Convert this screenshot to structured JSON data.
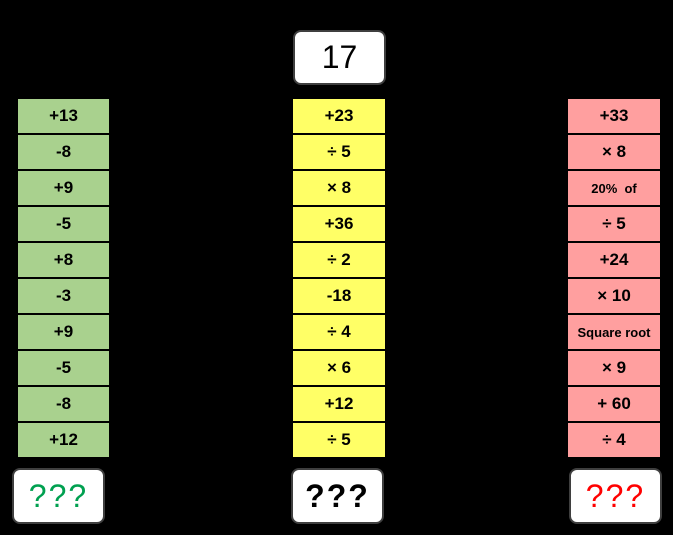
{
  "start_number": "17",
  "columns": {
    "green": [
      "+13",
      "-8",
      "+9",
      "-5",
      "+8",
      "-3",
      "+9",
      "-5",
      "-8",
      "+12"
    ],
    "yellow": [
      "+23",
      "÷ 5",
      "× 8",
      "+36",
      "÷ 2",
      "-18",
      "÷ 4",
      "× 6",
      "+12",
      "÷ 5"
    ],
    "red": [
      "+33",
      "× 8",
      "20%  of",
      "÷ 5",
      "+24",
      "× 10",
      "Square root",
      "× 9",
      "+ 60",
      "÷ 4"
    ]
  },
  "answers": {
    "green": "???",
    "yellow": "???",
    "red": "???"
  },
  "colors": {
    "green_fill": "#a9d18e",
    "yellow_fill": "#ffff66",
    "red_fill": "#ff9f9f",
    "green_text": "#00a050",
    "red_text": "#ff0000"
  }
}
